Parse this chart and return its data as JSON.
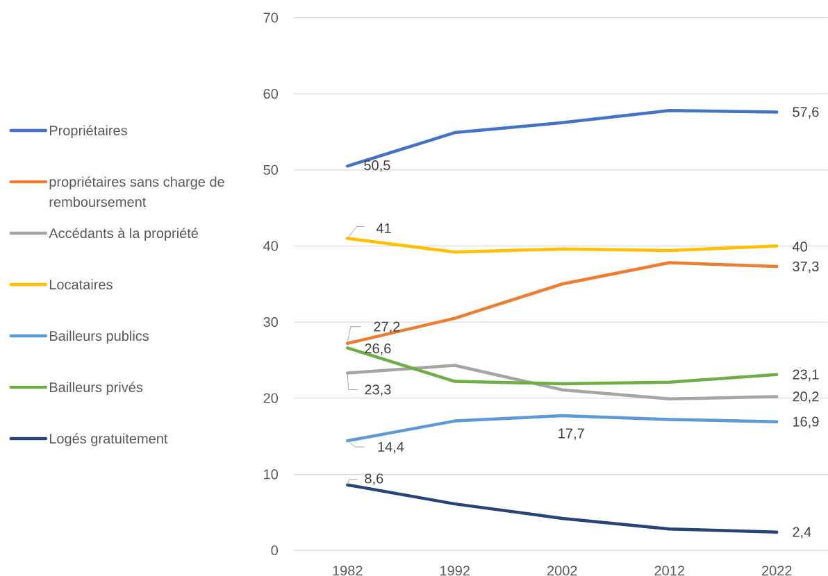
{
  "chart_data": {
    "type": "line",
    "categories": [
      "1982",
      "1992",
      "2002",
      "2012",
      "2022"
    ],
    "series": [
      {
        "name": "Propriétaires",
        "color": "#4472c4",
        "values": [
          50.5,
          54.9,
          56.2,
          57.8,
          57.6
        ],
        "value_labels": [
          "50,5",
          null,
          null,
          null,
          "57,6"
        ]
      },
      {
        "name": "propriétaires sans charge de remboursement",
        "color": "#ed7d31",
        "values": [
          27.2,
          30.5,
          35.0,
          37.8,
          37.3
        ],
        "value_labels": [
          "27,2",
          null,
          null,
          null,
          "37,3"
        ]
      },
      {
        "name": "Accédants à la propriété",
        "color": "#a5a5a5",
        "values": [
          23.3,
          24.3,
          21.1,
          19.9,
          20.2
        ],
        "value_labels": [
          "23,3",
          null,
          null,
          null,
          "20,2"
        ]
      },
      {
        "name": "Locataires",
        "color": "#ffc000",
        "values": [
          41,
          39.2,
          39.6,
          39.4,
          40
        ],
        "value_labels": [
          "41",
          null,
          null,
          null,
          "40"
        ]
      },
      {
        "name": "Bailleurs publics",
        "color": "#5b9bd5",
        "values": [
          14.4,
          17.0,
          17.7,
          17.2,
          16.9
        ],
        "value_labels": [
          "14,4",
          null,
          "17,7",
          null,
          "16,9"
        ]
      },
      {
        "name": "Bailleurs privés",
        "color": "#70ad47",
        "values": [
          26.6,
          22.2,
          21.9,
          22.1,
          23.1
        ],
        "value_labels": [
          "26,6",
          null,
          null,
          null,
          "23,1"
        ]
      },
      {
        "name": "Logés gratuitement",
        "color": "#264478",
        "values": [
          8.6,
          6.1,
          4.2,
          2.8,
          2.4
        ],
        "value_labels": [
          "8,6",
          null,
          null,
          null,
          "2,4"
        ]
      }
    ],
    "ylim": [
      0,
      70
    ],
    "yticks": [
      0,
      10,
      20,
      30,
      40,
      50,
      60,
      70
    ],
    "grid": "y",
    "legend": "left"
  }
}
